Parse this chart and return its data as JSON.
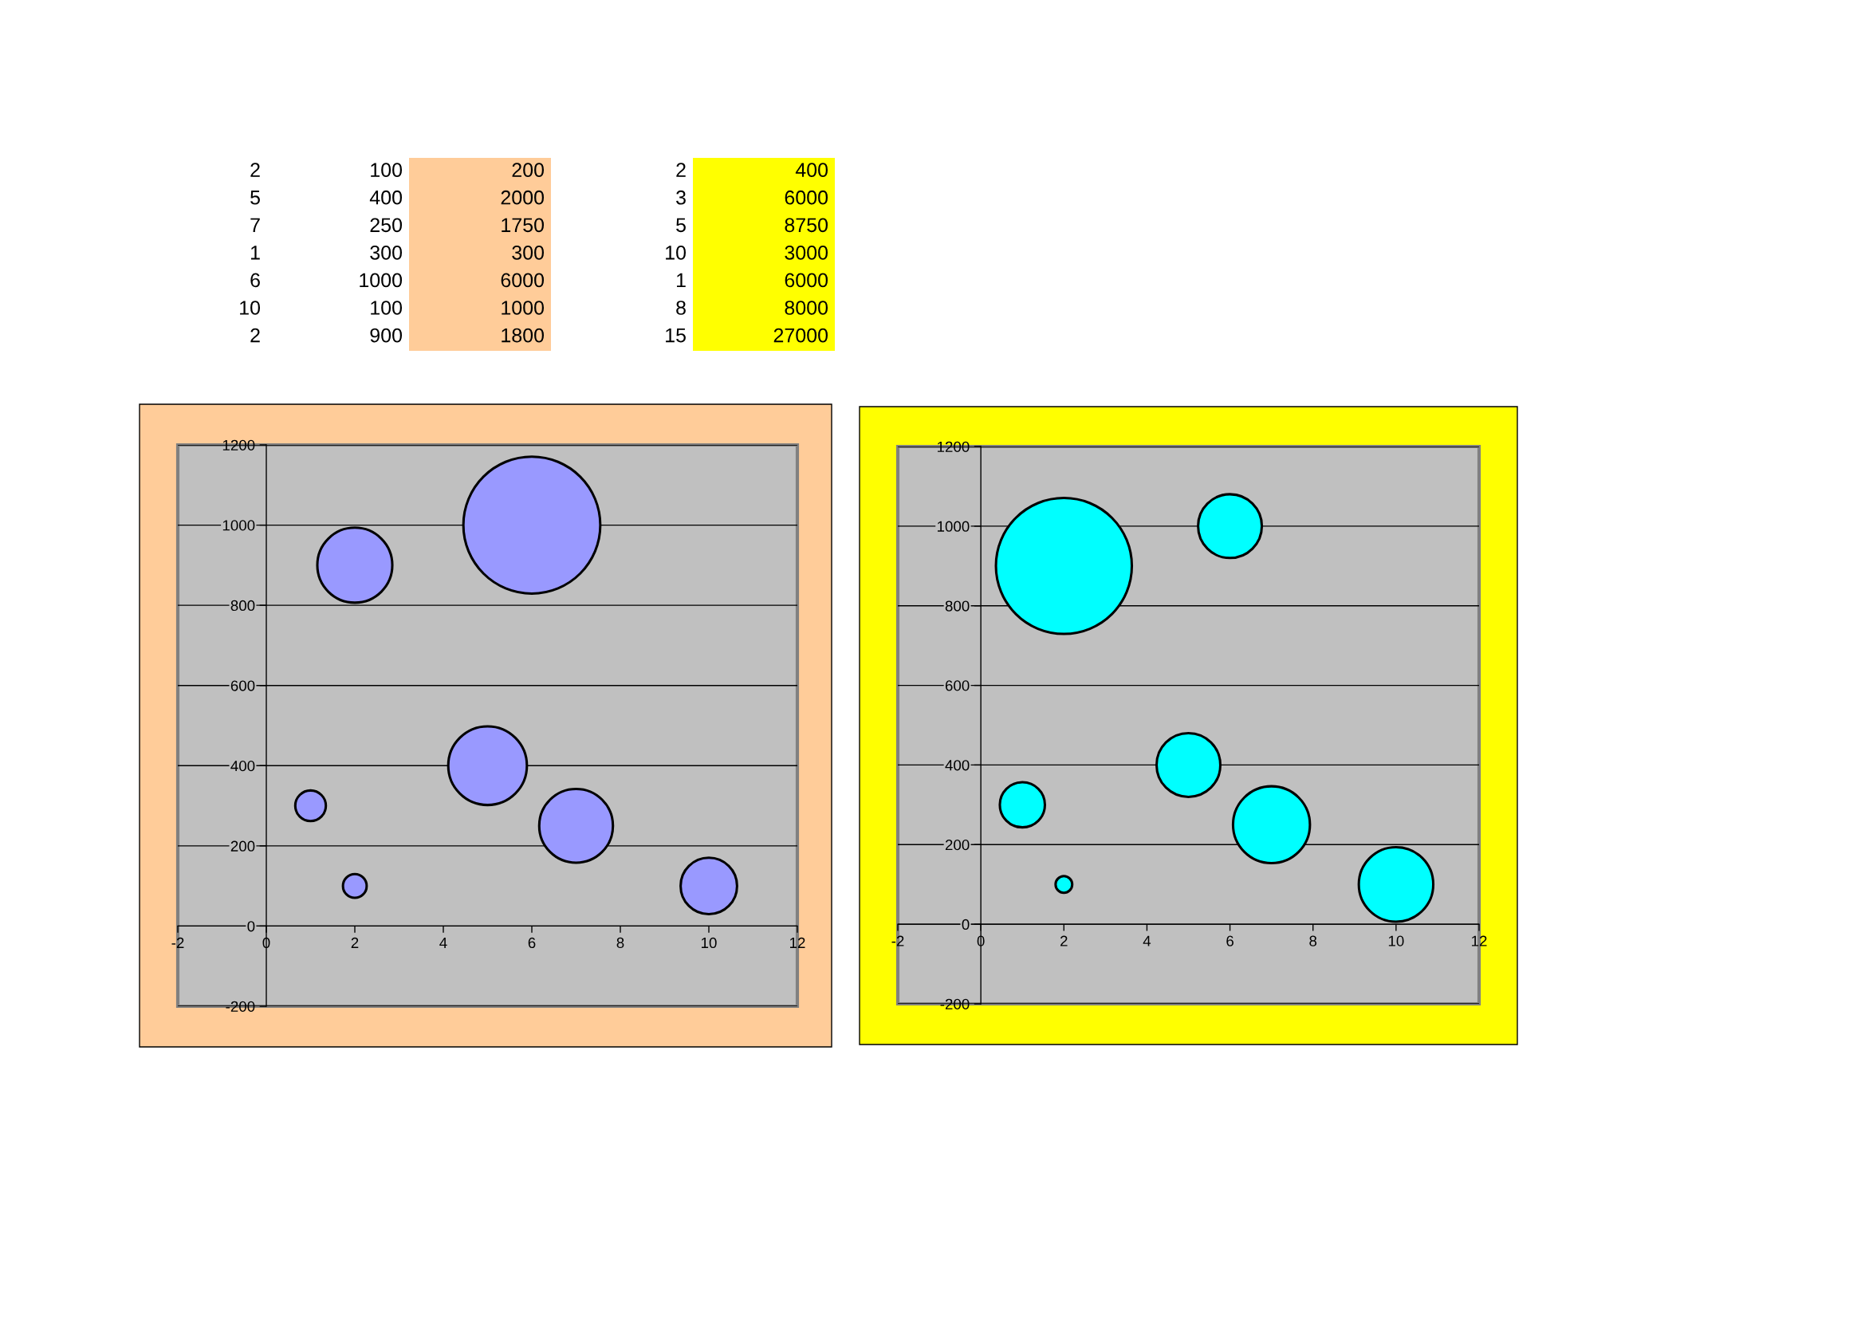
{
  "chart_data": [
    {
      "type": "other",
      "colors": [
        null,
        null,
        "#ffcc99",
        null,
        "#ffff00"
      ],
      "annotations": [
        "2",
        "100",
        "200",
        "2",
        "400",
        "5",
        "400",
        "2000",
        "3",
        "6000",
        "7",
        "250",
        "1750",
        "5",
        "8750",
        "1",
        "300",
        "300",
        "10",
        "3000",
        "6",
        "1000",
        "6000",
        "1",
        "6000",
        "10",
        "100",
        "1000",
        "8",
        "8000",
        "2",
        "900",
        "1800",
        "15",
        "27000"
      ]
    },
    {
      "type": "bubble",
      "x": [
        2,
        5,
        7,
        1,
        6,
        10,
        2
      ],
      "values": [
        100,
        400,
        250,
        300,
        1000,
        100,
        900
      ],
      "sizes": [
        0.03,
        0.33,
        0.29,
        0.05,
        1,
        0.17,
        0.3
      ],
      "color": "#9999ff",
      "xlim": [
        -2,
        12
      ],
      "xticks": [
        -2,
        0,
        2,
        4,
        6,
        8,
        10,
        12
      ],
      "ylim": [
        -200,
        1200
      ],
      "yticks": [
        -200,
        0,
        200,
        400,
        600,
        800,
        1000,
        1200
      ],
      "grid": "y"
    },
    {
      "type": "bubble",
      "x": [
        2,
        5,
        7,
        1,
        6,
        10,
        2
      ],
      "values": [
        100,
        400,
        250,
        300,
        1000,
        100,
        900
      ],
      "sizes": [
        0.015,
        0.22,
        0.32,
        0.11,
        0.22,
        0.3,
        1
      ],
      "color": "#00ffff",
      "xlim": [
        -2,
        12
      ],
      "xticks": [
        -2,
        0,
        2,
        4,
        6,
        8,
        10,
        12
      ],
      "ylim": [
        -200,
        1200
      ],
      "yticks": [
        -200,
        0,
        200,
        400,
        600,
        800,
        1000,
        1200
      ],
      "grid": "y"
    }
  ]
}
